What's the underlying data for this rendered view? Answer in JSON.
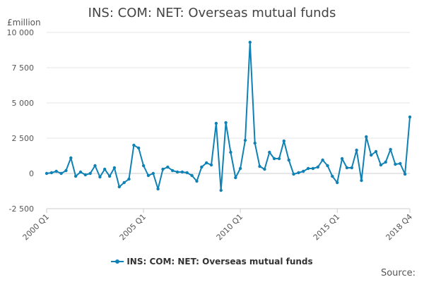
{
  "chart_data": {
    "type": "line",
    "title": "INS: COM: NET: Overseas mutual funds",
    "ylabel": "£million",
    "xlabel": "",
    "source_label": "Source:",
    "legend_placement": "bottom-center",
    "grid": "horizontal",
    "ylim": [
      -2500,
      10000
    ],
    "yticks": [
      -2500,
      0,
      2500,
      5000,
      7500,
      10000
    ],
    "ytick_labels": [
      "-2 500",
      "0",
      "2 500",
      "5 000",
      "7 500",
      "10 000"
    ],
    "xtick_labels": [
      "2000 Q1",
      "2005 Q1",
      "2010 Q1",
      "2015 Q1",
      "2018 Q4"
    ],
    "xtick_positions": [
      0,
      20,
      40,
      60,
      75
    ],
    "series": [
      {
        "name": "INS: COM: NET: Overseas mutual funds",
        "color": "#0f81b5",
        "values": [
          0,
          50,
          150,
          0,
          200,
          1100,
          -200,
          100,
          -100,
          0,
          550,
          -250,
          300,
          -200,
          400,
          -950,
          -650,
          -400,
          2000,
          1800,
          550,
          -150,
          0,
          -1100,
          300,
          450,
          200,
          100,
          100,
          50,
          -150,
          -550,
          450,
          750,
          600,
          3550,
          -1200,
          3600,
          1500,
          -300,
          350,
          2350,
          9300,
          2150,
          500,
          300,
          1500,
          1050,
          1050,
          2300,
          950,
          -50,
          50,
          150,
          350,
          350,
          450,
          950,
          550,
          -200,
          -650,
          1050,
          400,
          400,
          1650,
          -500,
          2600,
          1300,
          1550,
          600,
          800,
          1700,
          650,
          700,
          -50,
          4000
        ]
      }
    ]
  }
}
